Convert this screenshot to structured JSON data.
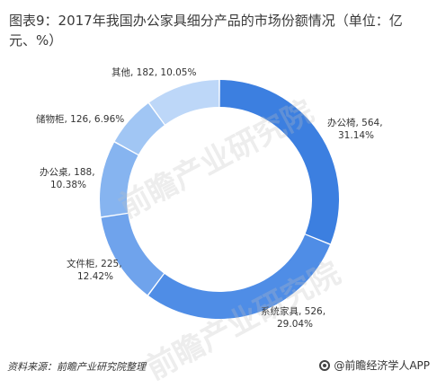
{
  "chart_data": {
    "type": "pie",
    "title": "图表9：2017年我国办公家具细分产品的市场份额情况（单位：亿元、%）",
    "donut": true,
    "slices": [
      {
        "name": "办公椅",
        "value": 564,
        "percent": "31.14%",
        "color": "#3c7fe0"
      },
      {
        "name": "系统家具",
        "value": 526,
        "percent": "29.04%",
        "color": "#4f8de6"
      },
      {
        "name": "文件柜",
        "value": 225,
        "percent": "12.42%",
        "color": "#6fa3ec"
      },
      {
        "name": "办公桌",
        "value": 188,
        "percent": "10.38%",
        "color": "#86b4f0"
      },
      {
        "name": "储物柜",
        "value": 126,
        "percent": "6.96%",
        "color": "#a1c6f4"
      },
      {
        "name": "其他",
        "value": 182,
        "percent": "10.05%",
        "color": "#bdd7f8"
      }
    ],
    "labels": [
      {
        "line1": "办公椅, 564,",
        "line2": "31.14%"
      },
      {
        "line1": "系统家具, 526,",
        "line2": "29.04%"
      },
      {
        "line1": "文件柜, 225,",
        "line2": "12.42%"
      },
      {
        "line1": "办公桌, 188,",
        "line2": "10.38%"
      },
      {
        "line1": "储物柜, 126, 6.96%",
        "line2": ""
      },
      {
        "line1": "其他, 182, 10.05%",
        "line2": ""
      }
    ]
  },
  "footer": {
    "source": "资料来源：前瞻产业研究院整理",
    "brand": "@前瞻经济学人APP"
  }
}
